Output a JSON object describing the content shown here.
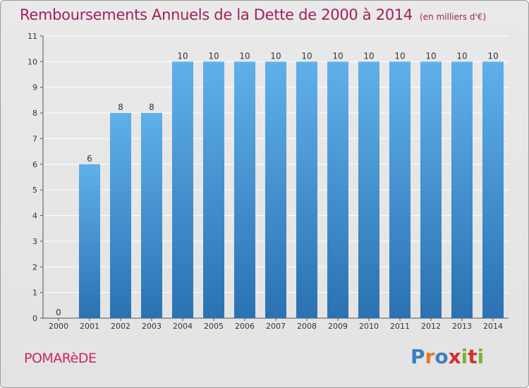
{
  "header": {
    "title": "Remboursements Annuels de la Dette de 2000 à 2014",
    "unit": "(en milliers d'€)"
  },
  "footer": {
    "commune": "POMARèDE",
    "logo_letters": [
      "P",
      "r",
      "o",
      "x",
      "i",
      "t",
      "i"
    ],
    "logo_colors": [
      "#3a7fc4",
      "#e8781e",
      "#3a7fc4",
      "#d2322d",
      "#78b434",
      "#d2322d",
      "#78b434"
    ]
  },
  "colors": {
    "bar_top": "#5fb0ea",
    "bar_bottom": "#2a72b2",
    "grid": "#ffffff",
    "axis": "#555555"
  },
  "chart_data": {
    "type": "bar",
    "title": "Remboursements Annuels de la Dette de 2000 à 2014",
    "subtitle": "(en milliers d'€)",
    "xlabel": "",
    "ylabel": "",
    "categories": [
      "2000",
      "2001",
      "2002",
      "2003",
      "2004",
      "2005",
      "2006",
      "2007",
      "2008",
      "2009",
      "2010",
      "2011",
      "2012",
      "2013",
      "2014"
    ],
    "values": [
      0,
      6,
      8,
      8,
      10,
      10,
      10,
      10,
      10,
      10,
      10,
      10,
      10,
      10,
      10
    ],
    "data_labels": [
      "0",
      "6",
      "8",
      "8",
      "10",
      "10",
      "10",
      "10",
      "10",
      "10",
      "10",
      "10",
      "10",
      "10",
      "10"
    ],
    "yticks": [
      0,
      1,
      2,
      3,
      4,
      5,
      6,
      7,
      8,
      9,
      10,
      11
    ],
    "ylim": [
      0,
      11
    ],
    "grid": true,
    "legend": "none"
  }
}
